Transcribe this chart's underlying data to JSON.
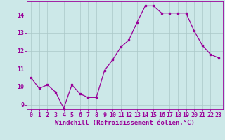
{
  "x": [
    0,
    1,
    2,
    3,
    4,
    5,
    6,
    7,
    8,
    9,
    10,
    11,
    12,
    13,
    14,
    15,
    16,
    17,
    18,
    19,
    20,
    21,
    22,
    23
  ],
  "y": [
    10.5,
    9.9,
    10.1,
    9.7,
    8.8,
    10.1,
    9.6,
    9.4,
    9.4,
    10.9,
    11.5,
    12.2,
    12.6,
    13.6,
    14.5,
    14.5,
    14.1,
    14.1,
    14.1,
    14.1,
    13.1,
    12.3,
    11.8,
    11.6
  ],
  "line_color": "#990099",
  "marker": "s",
  "marker_size": 2.0,
  "bg_color": "#cce8e8",
  "grid_color": "#aac8c8",
  "xlabel": "Windchill (Refroidissement éolien,°C)",
  "ylim": [
    8.75,
    14.75
  ],
  "xlim": [
    -0.5,
    23.5
  ],
  "yticks": [
    9,
    10,
    11,
    12,
    13,
    14
  ],
  "xticks": [
    0,
    1,
    2,
    3,
    4,
    5,
    6,
    7,
    8,
    9,
    10,
    11,
    12,
    13,
    14,
    15,
    16,
    17,
    18,
    19,
    20,
    21,
    22,
    23
  ],
  "axis_color": "#990099",
  "tick_color": "#990099",
  "label_fontsize": 6.5,
  "tick_fontsize": 6.0
}
